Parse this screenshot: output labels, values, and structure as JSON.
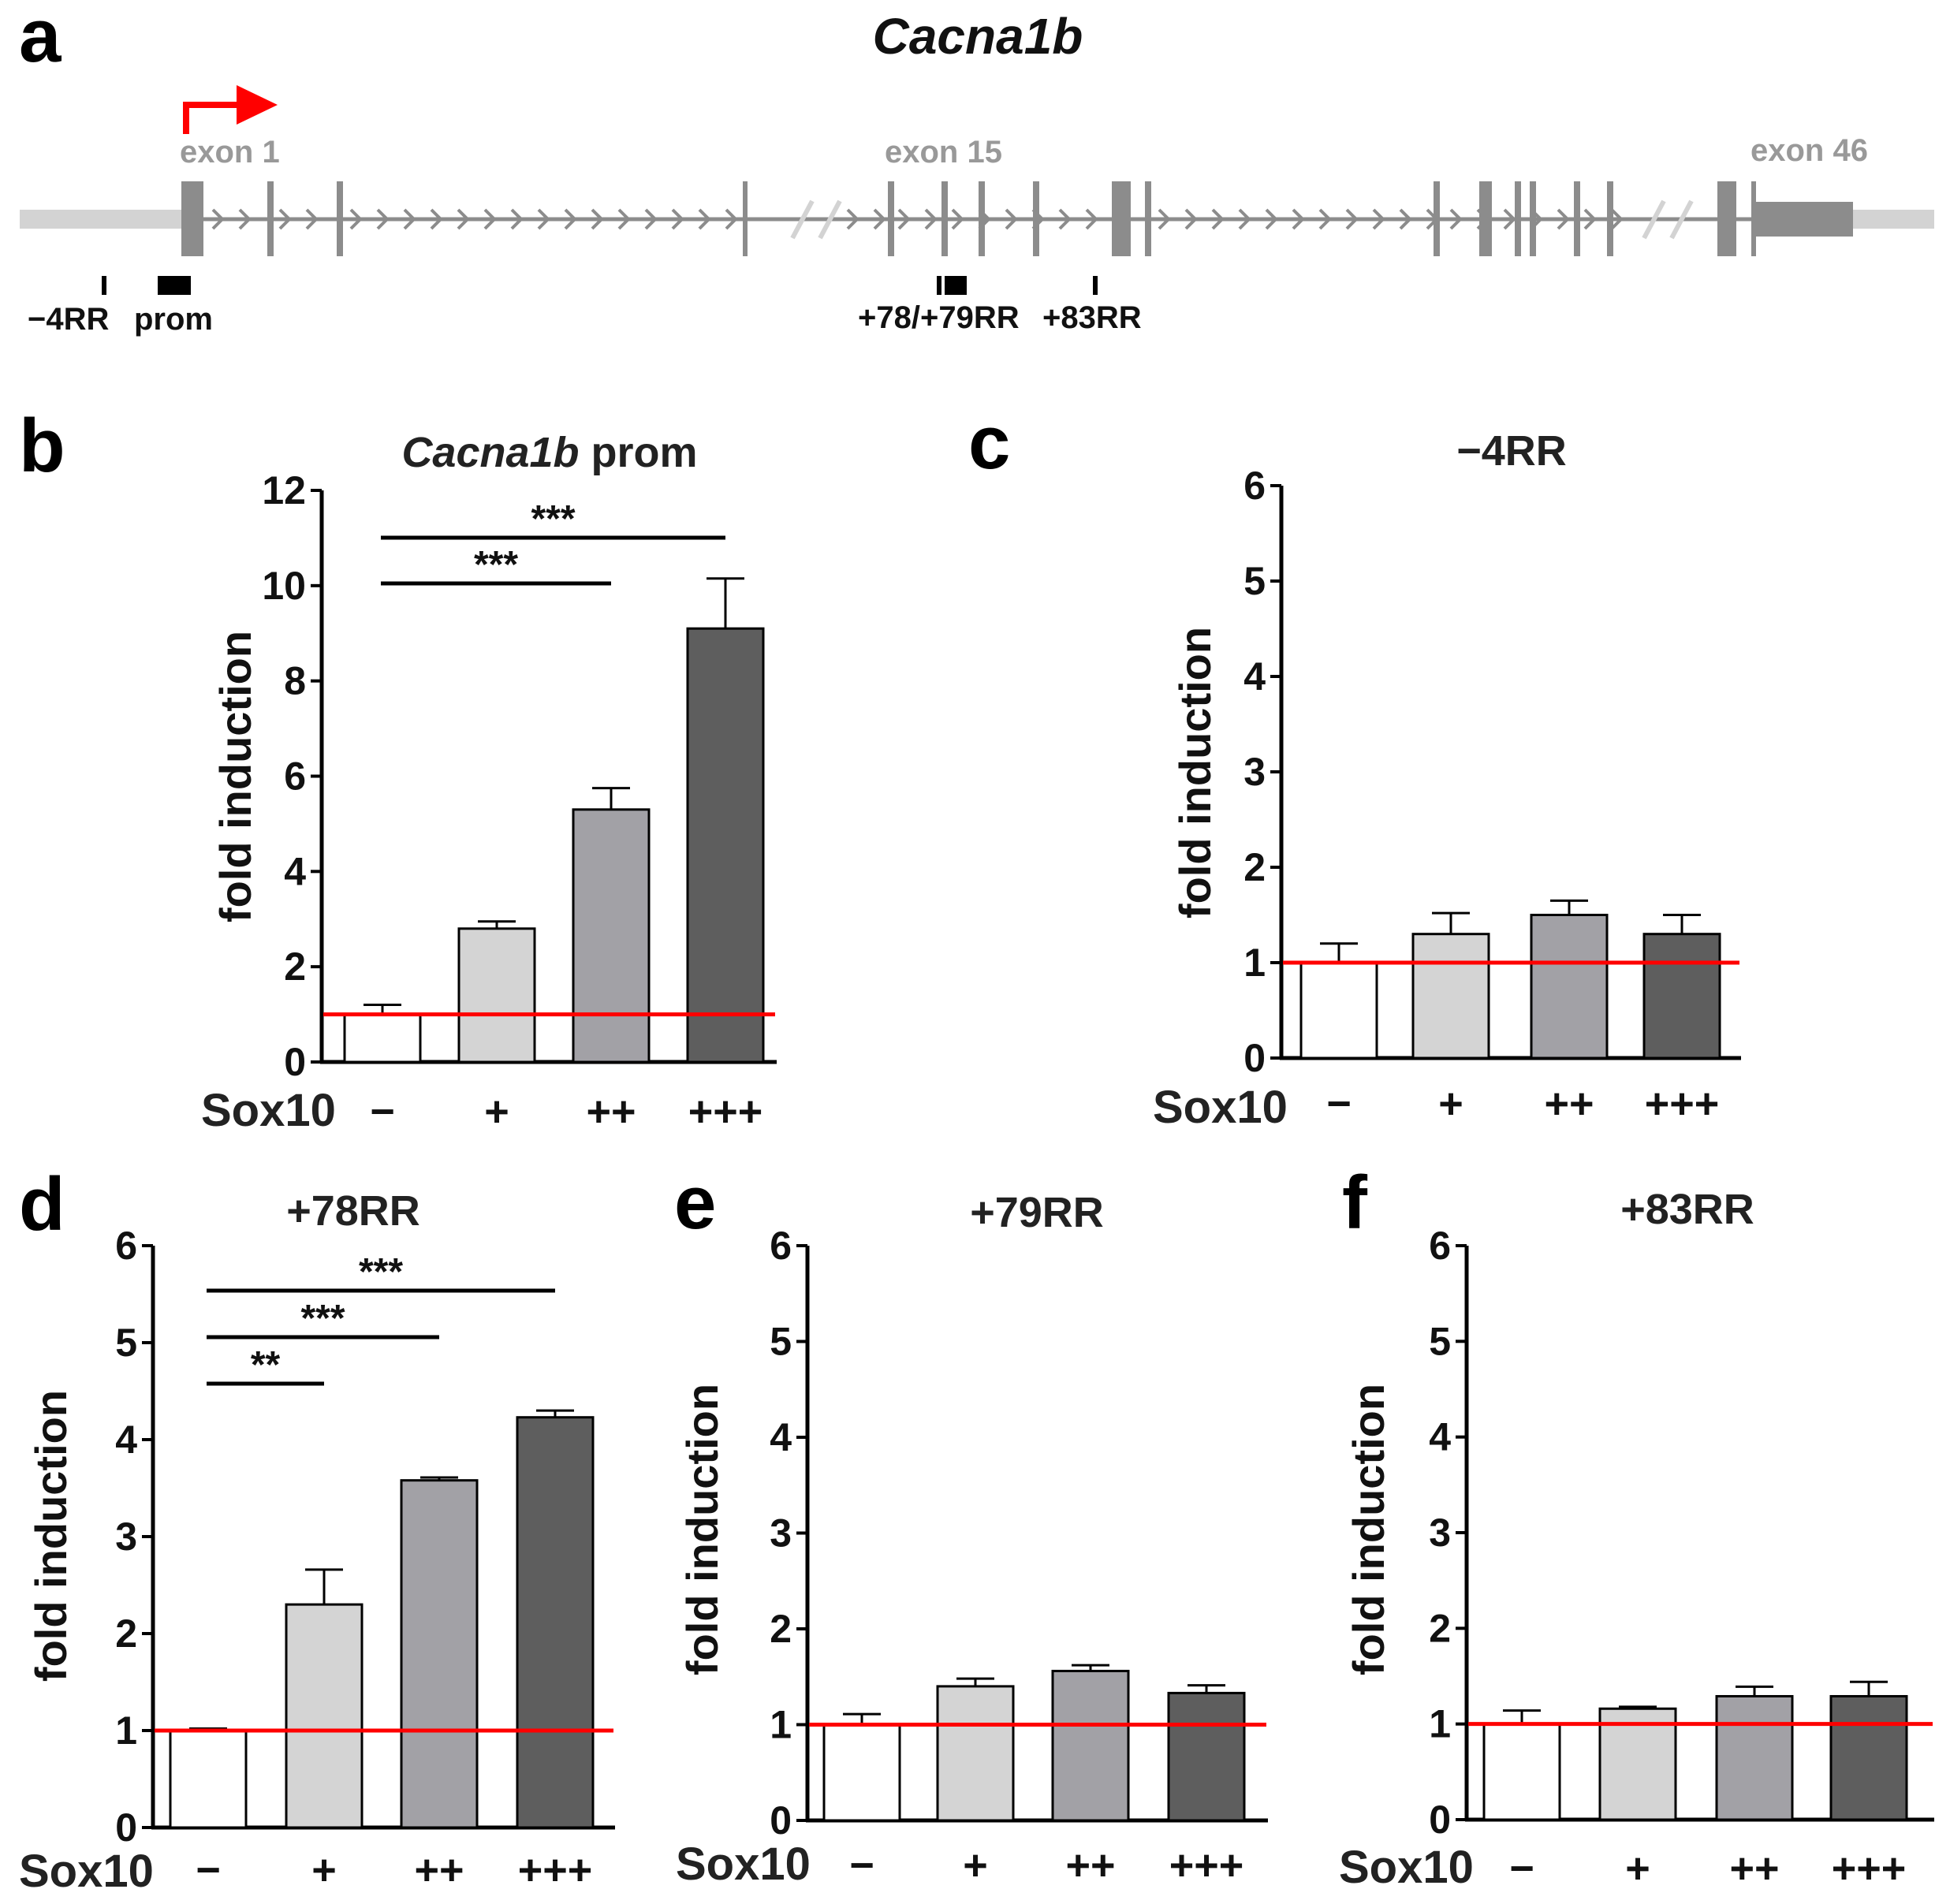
{
  "panel_a": {
    "letter": "a",
    "gene": "Cacna1b",
    "exon_labels": [
      "exon 1",
      "exon 15",
      "exon 46"
    ],
    "regions": [
      "−4RR",
      "prom",
      "+78/+79RR",
      "+83RR"
    ],
    "colors": {
      "gene": "#8c8c8c",
      "backbone": "#d3d3d3",
      "arrow": "#ff0000",
      "region": "#000000"
    }
  },
  "colors": {
    "bars": [
      "#ffffff",
      "#d4d4d4",
      "#a2a1a6",
      "#5e5e5e"
    ],
    "baseline": "#ff0000",
    "axis": "#000000"
  },
  "chart_data": [
    {
      "panel": "b",
      "type": "bar",
      "title_italic": "Cacna1b",
      "title": " prom",
      "ylabel": "fold induction",
      "xlabel": "Sox10",
      "categories": [
        "−",
        "+",
        "++",
        "+++"
      ],
      "values": [
        1.0,
        2.8,
        5.3,
        9.1
      ],
      "errors": [
        0.2,
        0.15,
        0.45,
        1.05
      ],
      "ylim": [
        0,
        12
      ],
      "yticks": [
        0,
        2,
        4,
        6,
        8,
        10,
        12
      ],
      "reference_line": 1,
      "significance": [
        {
          "from": 0,
          "to": 2,
          "label": "***"
        },
        {
          "from": 0,
          "to": 3,
          "label": "***"
        }
      ]
    },
    {
      "panel": "c",
      "type": "bar",
      "title": "−4RR",
      "ylabel": "fold induction",
      "xlabel": "Sox10",
      "categories": [
        "−",
        "+",
        "++",
        "+++"
      ],
      "values": [
        1.0,
        1.3,
        1.5,
        1.3
      ],
      "errors": [
        0.2,
        0.22,
        0.15,
        0.2
      ],
      "ylim": [
        0,
        6
      ],
      "yticks": [
        0,
        1,
        2,
        3,
        4,
        5,
        6
      ],
      "reference_line": 1,
      "significance": []
    },
    {
      "panel": "d",
      "type": "bar",
      "title": "+78RR",
      "ylabel": "fold induction",
      "xlabel": "Sox10",
      "categories": [
        "−",
        "+",
        "++",
        "+++"
      ],
      "values": [
        1.0,
        2.3,
        3.58,
        4.23
      ],
      "errors": [
        0.02,
        0.36,
        0.03,
        0.07
      ],
      "ylim": [
        0,
        6
      ],
      "yticks": [
        0,
        1,
        2,
        3,
        4,
        5,
        6
      ],
      "reference_line": 1,
      "significance": [
        {
          "from": 0,
          "to": 1,
          "label": "**"
        },
        {
          "from": 0,
          "to": 2,
          "label": "***"
        },
        {
          "from": 0,
          "to": 3,
          "label": "***"
        }
      ]
    },
    {
      "panel": "e",
      "type": "bar",
      "title": "+79RR",
      "ylabel": "fold induction",
      "xlabel": "Sox10",
      "categories": [
        "−",
        "+",
        "++",
        "+++"
      ],
      "values": [
        1.0,
        1.4,
        1.56,
        1.33
      ],
      "errors": [
        0.11,
        0.08,
        0.06,
        0.08
      ],
      "ylim": [
        0,
        6
      ],
      "yticks": [
        0,
        1,
        2,
        3,
        4,
        5,
        6
      ],
      "reference_line": 1,
      "significance": []
    },
    {
      "panel": "f",
      "type": "bar",
      "title": "+83RR",
      "ylabel": "fold induction",
      "xlabel": "Sox10",
      "categories": [
        "−",
        "+",
        "++",
        "+++"
      ],
      "values": [
        1.0,
        1.16,
        1.29,
        1.29
      ],
      "errors": [
        0.14,
        0.02,
        0.1,
        0.15
      ],
      "ylim": [
        0,
        6
      ],
      "yticks": [
        0,
        1,
        2,
        3,
        4,
        5,
        6
      ],
      "reference_line": 1,
      "significance": []
    }
  ]
}
